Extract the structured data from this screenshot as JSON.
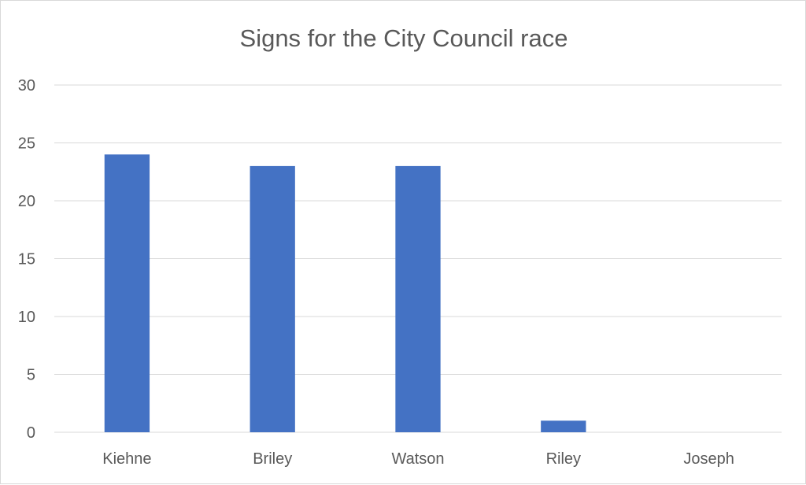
{
  "chart_data": {
    "type": "bar",
    "title": "Signs for the City Council race",
    "categories": [
      "Kiehne",
      "Briley",
      "Watson",
      "Riley",
      "Joseph"
    ],
    "values": [
      24,
      23,
      23,
      1,
      0
    ],
    "ylim": [
      0,
      30
    ],
    "yticks": [
      "0",
      "5",
      "10",
      "15",
      "20",
      "25",
      "30"
    ],
    "grid": true,
    "legend": "none",
    "bar_color": "#4472C4"
  }
}
